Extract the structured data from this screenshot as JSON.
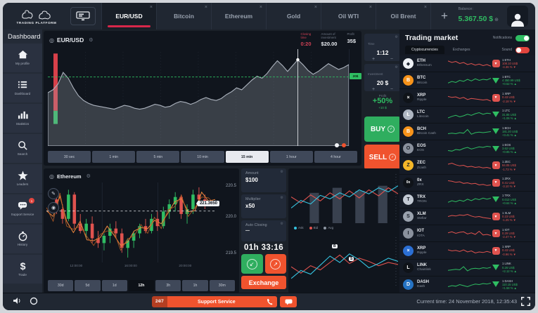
{
  "colors": {
    "accent_red": "#d8274a",
    "green": "#2fbd62",
    "buy_green": "#2fae5f",
    "sell_orange": "#f0532e",
    "cyan": "#35c3e0",
    "red_line": "#e0534f",
    "area_line": "#d9dde4",
    "grid": "#252d3a",
    "amber": "#f7931a"
  },
  "header": {
    "logo_title": "TRADING PLATFORM",
    "tabs": [
      {
        "label": "EUR/USD",
        "active": true
      },
      {
        "label": "Bitcoin",
        "active": false
      },
      {
        "label": "Ethereum",
        "active": false
      },
      {
        "label": "Gold",
        "active": false
      },
      {
        "label": "Oil WTI",
        "active": false
      },
      {
        "label": "Oil Brent",
        "active": false
      }
    ],
    "add_label": "+",
    "balance_label": "Balance:",
    "balance_value": "5.367.50 $"
  },
  "sidebar": {
    "title": "Dashboard",
    "items": [
      {
        "label": "My profile",
        "icon": "home-icon"
      },
      {
        "label": "Dashboard",
        "icon": "list-icon"
      },
      {
        "label": "Statistics",
        "icon": "stats-icon"
      },
      {
        "label": "Search",
        "icon": "search-icon"
      },
      {
        "label": "Leaders",
        "icon": "star-icon"
      },
      {
        "label": "Support Service",
        "icon": "chat-icon",
        "badge": "1"
      },
      {
        "label": "History",
        "icon": "history-icon"
      },
      {
        "label": "Trade",
        "icon": "dollar-icon"
      }
    ]
  },
  "main_chart": {
    "pair": "EUR/USD",
    "stats": [
      {
        "label": "Closing\ntime",
        "value": "0:20",
        "red": true
      },
      {
        "label": "Amount of\ninvestment",
        "value": "$20.00",
        "red": false
      },
      {
        "label": "Profit",
        "value": "35$",
        "red": false
      }
    ],
    "price_tag": "20$",
    "timeframes": [
      "30 sec",
      "1 min",
      "5 min",
      "10 min",
      "15 min",
      "1 hour",
      "4 hour"
    ],
    "selected_timeframe": "15 min",
    "series": [
      55,
      58,
      64,
      76,
      70,
      60,
      52,
      47,
      44,
      42,
      41,
      40,
      39,
      38,
      40,
      42,
      41,
      39,
      38,
      39,
      41,
      43,
      42,
      40,
      41,
      44,
      46,
      45,
      43,
      45,
      48,
      50,
      48,
      47,
      49,
      53,
      56,
      60,
      58,
      63,
      68,
      72,
      70,
      75,
      82,
      88,
      83,
      77,
      83,
      89,
      84,
      78,
      74,
      77,
      81,
      85,
      82,
      79,
      81,
      84
    ]
  },
  "trade_controls": {
    "time_label": "Time",
    "time_value": "1:12",
    "invest_label": "Investment",
    "invest_value": "20 $",
    "plus": "+",
    "minus": "−",
    "profit_label": "Profit",
    "profit_value": "+50%",
    "profit_sub": "+10 $",
    "buy_label": "BUY",
    "sell_label": "SELL"
  },
  "eth_chart": {
    "pair": "Ethereum",
    "axis_labels": [
      "220.5",
      "220.0",
      "219.5"
    ],
    "price_tag": "221.3650",
    "x_labels": [
      "12:00:00",
      "16:00:00",
      "20:00:00"
    ],
    "timeframes": [
      "30d",
      "5d",
      "1d",
      "12h",
      "3h",
      "1h",
      "30m"
    ],
    "selected_timeframe": "12h",
    "candles": [
      [
        220.6,
        220.75,
        220.3,
        220.4
      ],
      [
        220.4,
        220.5,
        220.1,
        220.2
      ],
      [
        220.2,
        220.8,
        220.15,
        220.7
      ],
      [
        220.7,
        220.75,
        220.0,
        220.1
      ],
      [
        220.1,
        220.3,
        219.9,
        219.95
      ],
      [
        219.95,
        220.2,
        219.8,
        220.1
      ],
      [
        220.1,
        220.25,
        219.7,
        219.8
      ],
      [
        219.8,
        219.95,
        219.6,
        219.7
      ],
      [
        219.7,
        219.9,
        219.55,
        219.85
      ],
      [
        219.85,
        220.1,
        219.7,
        220.0
      ],
      [
        220.0,
        220.15,
        219.8,
        219.9
      ],
      [
        219.9,
        220.0,
        219.5,
        219.6
      ],
      [
        219.6,
        219.8,
        219.4,
        219.75
      ],
      [
        219.75,
        219.95,
        219.6,
        219.9
      ],
      [
        219.9,
        220.1,
        219.8,
        220.05
      ],
      [
        220.05,
        220.2,
        219.9,
        219.95
      ],
      [
        219.95,
        220.3,
        219.9,
        220.2
      ],
      [
        220.2,
        220.35,
        219.95,
        220.05
      ],
      [
        220.05,
        220.45,
        220.0,
        220.35
      ],
      [
        220.35,
        220.6,
        220.2,
        220.5
      ],
      [
        220.5,
        220.75,
        220.35,
        220.65
      ],
      [
        220.65,
        220.7,
        220.2,
        220.3
      ],
      [
        220.3,
        220.5,
        220.1,
        220.4
      ],
      [
        220.4,
        220.8,
        220.3,
        220.7
      ],
      [
        220.7,
        220.85,
        220.5,
        220.6
      ],
      [
        220.6,
        220.7,
        220.4,
        220.55
      ]
    ]
  },
  "exchange_controls": {
    "amount_label": "Amount",
    "amount_value": "$100",
    "multiplier_label": "Multiplier",
    "multiplier_value": "x50",
    "auto_label": "Auto Closing",
    "auto_value": "—",
    "timer": "01h 33:16",
    "exchange_label": "Exchange"
  },
  "mini_charts": {
    "legend": [
      {
        "label": "Ask",
        "color": "#35c3e0"
      },
      {
        "label": "Bid",
        "color": "#e0534f"
      },
      {
        "label": "Avg",
        "color": "#8e97a3"
      }
    ],
    "bars": [
      60,
      70,
      64,
      74
    ],
    "top_cyan": [
      30,
      45,
      38,
      55,
      48,
      60,
      52,
      66,
      58,
      70,
      62,
      74
    ],
    "top_red": [
      52,
      40,
      56,
      44,
      60,
      48,
      64,
      50,
      66,
      54,
      70,
      58
    ],
    "bottom_cyan": [
      20,
      35,
      28,
      45,
      62,
      50,
      66,
      55,
      40,
      48,
      58,
      52
    ],
    "bottom_red": [
      42,
      30,
      44,
      36,
      50,
      64,
      48,
      58,
      52,
      44,
      50,
      46
    ],
    "tags": [
      "B",
      "S"
    ]
  },
  "market": {
    "title": "Trading market",
    "notifications_label": "Notifications",
    "notifications_on": true,
    "sound_label": "Sound",
    "sound_on": false,
    "tabs": [
      {
        "label": "Cryptocurrencies",
        "active": true
      },
      {
        "label": "Exchanges",
        "active": false
      }
    ],
    "coins": [
      {
        "sym": "ETH",
        "name": "Ethereum",
        "trend": "down",
        "icon_text": "◆",
        "icon_bg": "#eef1f5",
        "icon_fg": "#1d242f",
        "l1": "1 ETH",
        "l2": "108.10 US$",
        "l3": "-4.36 % ▼",
        "spark": [
          15,
          12,
          14,
          10,
          12,
          8,
          10,
          7,
          9,
          6,
          8,
          5
        ]
      },
      {
        "sym": "BTC",
        "name": "Bitcoin",
        "trend": "up",
        "icon_text": "B",
        "icon_bg": "#f7931a",
        "icon_fg": "#ffffff",
        "l1": "1 BTC",
        "l2": "4 350.99 US$",
        "l3": "+0.52 % ▲",
        "spark": [
          5,
          8,
          6,
          10,
          8,
          12,
          9,
          13,
          10,
          12,
          11,
          14
        ]
      },
      {
        "sym": "XRP",
        "name": "Ripple",
        "trend": "down",
        "icon_text": "×",
        "icon_bg": "#0f1319",
        "icon_fg": "#ffffff",
        "l1": "1 XRP",
        "l2": "0.43 US$",
        "l3": "-2.18 % ▼",
        "spark": [
          13,
          11,
          12,
          9,
          11,
          7,
          9,
          8,
          7,
          6,
          7,
          4
        ]
      },
      {
        "sym": "LTC",
        "name": "Litecoin",
        "trend": "up",
        "icon_text": "Ł",
        "icon_bg": "#aeb6c2",
        "icon_fg": "#ffffff",
        "l1": "1 LTC",
        "l2": "31.85 US$",
        "l3": "+1.06 % ▲",
        "spark": [
          4,
          7,
          9,
          6,
          8,
          11,
          9,
          12,
          14,
          11,
          13,
          12
        ]
      },
      {
        "sym": "BCH",
        "name": "Bitcoin Cash",
        "trend": "up",
        "icon_text": "B",
        "icon_bg": "#f7931a",
        "icon_fg": "#ffffff",
        "l1": "1 BCH",
        "l2": "181.20 US$",
        "l3": "+3.41 % ▲",
        "spark": [
          6,
          7,
          6,
          8,
          7,
          14,
          5,
          8,
          9,
          8,
          9,
          10
        ]
      },
      {
        "sym": "EOS",
        "name": "EOS",
        "trend": "up",
        "icon_text": "O",
        "icon_bg": "#8a919d",
        "icon_fg": "#141a24",
        "l1": "1 EOS",
        "l2": "3.62 US$",
        "l3": "+0.85 % ▲",
        "spark": [
          6,
          5,
          8,
          7,
          10,
          12,
          9,
          11,
          13,
          12,
          14,
          13
        ]
      },
      {
        "sym": "ZEC",
        "name": "Zcash",
        "trend": "down",
        "icon_text": "Z",
        "icon_bg": "#f4b728",
        "icon_fg": "#141a24",
        "l1": "1 ZEC",
        "l2": "84.05 US$",
        "l3": "-1.73 % ▼",
        "spark": [
          12,
          14,
          11,
          9,
          10,
          7,
          8,
          6,
          7,
          5,
          6,
          4
        ]
      },
      {
        "sym": "0x",
        "name": "ZRX",
        "trend": "down",
        "icon_text": "0x",
        "icon_bg": "#0f1319",
        "icon_fg": "#ffffff",
        "l1": "1 ZRX",
        "l2": "0.41 US$",
        "l3": "-3.10 % ▼",
        "spark": [
          14,
          13,
          11,
          12,
          9,
          10,
          8,
          9,
          6,
          7,
          5,
          6
        ]
      },
      {
        "sym": "TRX",
        "name": "TRON",
        "trend": "up",
        "icon_text": "T",
        "icon_bg": "#c3cad4",
        "icon_fg": "#141a24",
        "l1": "1 TRX",
        "l2": "0.013 US$",
        "l3": "+0.64 % ▲",
        "spark": [
          5,
          8,
          6,
          9,
          7,
          11,
          8,
          12,
          10,
          13,
          11,
          13
        ]
      },
      {
        "sym": "XLM",
        "name": "Stellar",
        "trend": "down",
        "icon_text": "S",
        "icon_bg": "#9aa2ae",
        "icon_fg": "#141a24",
        "l1": "1 XLM",
        "l2": "0.23 US$",
        "l3": "-1.25 % ▼",
        "spark": [
          10,
          12,
          11,
          13,
          12,
          14,
          11,
          9,
          10,
          8,
          7,
          6
        ]
      },
      {
        "sym": "IOT",
        "name": "IOTA",
        "trend": "down",
        "icon_text": "I",
        "icon_bg": "#8a919d",
        "icon_fg": "#141a24",
        "l1": "1 IOT",
        "l2": "0.29 US$",
        "l3": "-2.47 % ▼",
        "spark": [
          11,
          13,
          10,
          12,
          13,
          9,
          11,
          8,
          14,
          7,
          8,
          6
        ]
      },
      {
        "sym": "XRP",
        "name": "Ripple",
        "trend": "down",
        "icon_text": "×",
        "icon_bg": "#2b6fd4",
        "icon_fg": "#ffffff",
        "l1": "1 XRP",
        "l2": "0.43 US$",
        "l3": "-0.96 % ▼",
        "spark": [
          12,
          10,
          11,
          9,
          12,
          8,
          10,
          6,
          8,
          7,
          9,
          7
        ]
      },
      {
        "sym": "LINK",
        "name": "Chainlink",
        "trend": "up",
        "icon_text": "L",
        "icon_bg": "#0f1319",
        "icon_fg": "#ffffff",
        "l1": "1 LINK",
        "l2": "0.26 US$",
        "l3": "+2.12 % ▲",
        "spark": [
          5,
          6,
          7,
          6,
          12,
          4,
          8,
          9,
          8,
          10,
          9,
          11
        ]
      },
      {
        "sym": "DASH",
        "name": "Dash",
        "trend": "up",
        "icon_text": "D",
        "icon_bg": "#2573c4",
        "icon_fg": "#ffffff",
        "l1": "1 DASH",
        "l2": "110.15 US$",
        "l3": "+1.58 % ▲",
        "spark": [
          6,
          8,
          7,
          10,
          8,
          6,
          9,
          11,
          10,
          12,
          11,
          13
        ]
      }
    ]
  },
  "bottom_bar": {
    "support_badge": "24/7",
    "support_label": "Support Service",
    "current_time": "Current time: 24 November 2018, 12:35:43"
  }
}
